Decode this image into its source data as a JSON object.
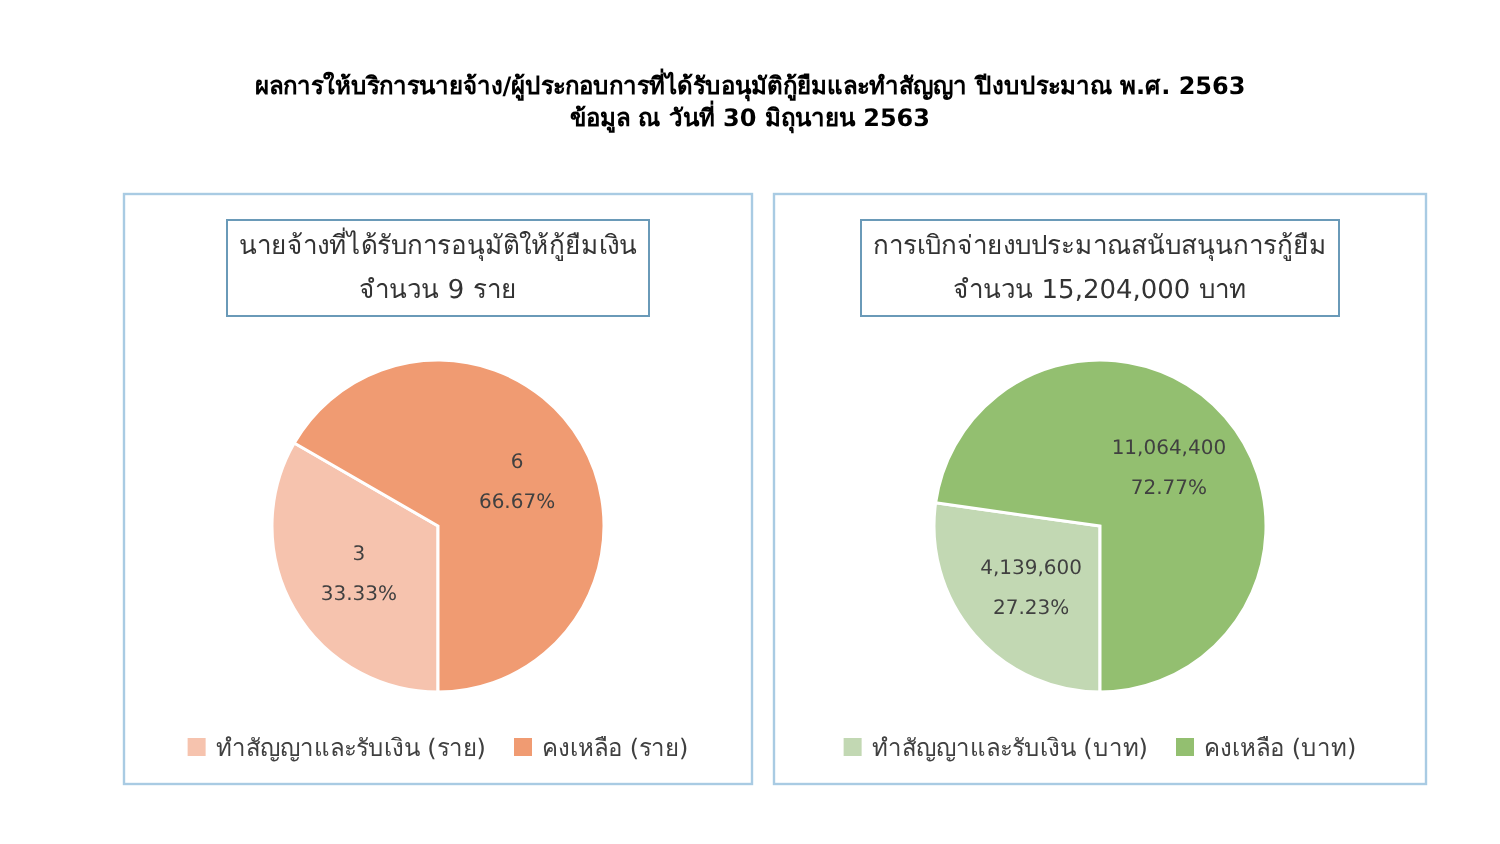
{
  "chart_data": [
    {
      "type": "other",
      "title": "ผลการให้บริการนายจ้าง/ผู้ประกอบการที่ได้รับอนุมัติกู้ยืมและทำสัญญา  ปีงบประมาณ พ.ศ. 2563",
      "subtitle": "ข้อมูล ณ วันที่ 30 มิถุนายน 2563"
    },
    {
      "type": "pie",
      "title": "นายจ้างที่ได้รับการอนุมัติให้กู้ยืมเงิน",
      "subtitle": "จำนวน 9 ราย",
      "categories": [
        "ทำสัญญาและรับเงิน (ราย)",
        "คงเหลือ (ราย)"
      ],
      "values": [
        3,
        6
      ],
      "colors": [
        "#f6c3ae",
        "#f09b72"
      ],
      "value_labels": [
        "3\n33.33%",
        "6\n66.67%"
      ],
      "legend": "bottom"
    },
    {
      "type": "pie",
      "title": "การเบิกจ่ายงบประมาณสนับสนุนการกู้ยืม",
      "subtitle": "จำนวน 15,204,000 บาท",
      "categories": [
        "ทำสัญญาและรับเงิน (บาท)",
        "คงเหลือ (บาท)"
      ],
      "values": [
        4139600,
        11064400
      ],
      "colors": [
        "#c2d8b3",
        "#93bf70"
      ],
      "value_labels": [
        "4,139,600\n27.23%",
        "11,064,400\n72.77%"
      ],
      "legend": "bottom"
    }
  ]
}
